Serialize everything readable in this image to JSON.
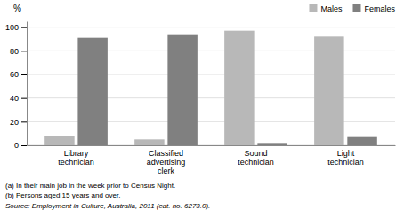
{
  "chart_data": {
    "type": "bar",
    "ylabel": "%",
    "categories": [
      "Library\ntechnician",
      "Classified\nadvertising\nclerk",
      "Sound\ntechnician",
      "Light\ntechnician"
    ],
    "series": [
      {
        "name": "Males",
        "color": "#b8b8b8",
        "values": [
          8,
          5,
          97,
          92
        ]
      },
      {
        "name": "Females",
        "color": "#808080",
        "values": [
          91,
          94,
          2,
          7
        ]
      }
    ],
    "ylim": [
      0,
      105
    ],
    "yticks": [
      0,
      20,
      40,
      60,
      80,
      100
    ],
    "grid": true,
    "legend": "upper right",
    "footnotes": [
      "(a) In their main job in the week prior to Census Night.",
      "(b) Persons aged 15 years and over."
    ],
    "source": "Source: Employment in Culture, Australia, 2011 (cat. no. 6273.0)."
  }
}
